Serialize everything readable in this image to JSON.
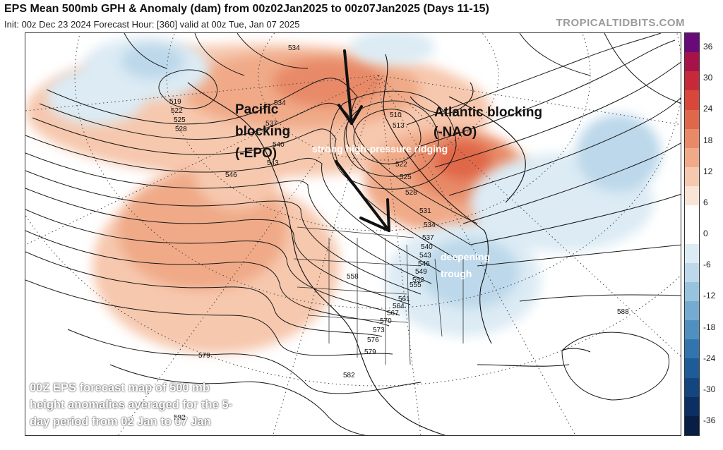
{
  "header": {
    "title": "EPS Mean 500mb GPH & Anomaly (dam) from 00z02Jan2025 to 00z07Jan2025 (Days 11-15)",
    "subtitle": "Init: 00z Dec 23 2024   Forecast Hour: [360]   valid at 00z Tue, Jan 07 2025",
    "brand": "TROPICALTIDBITS.COM"
  },
  "annotations": {
    "pacific_1": "Pacific",
    "pacific_2": "blocking",
    "pacific_3": "(-EPO)",
    "atlantic_1": "Atlantic blocking",
    "atlantic_2": "(-NAO)",
    "ridging": "strong high-pressure ridging",
    "trough_1": "deepening",
    "trough_2": "trough"
  },
  "caption": {
    "line1": "00Z EPS forecast map of 500 mb",
    "line2": "height anomalies averaged for the 5-",
    "line3": "day period from 02 Jan to 07 Jan"
  },
  "contour_labels": [
    "534",
    "534",
    "519",
    "522",
    "525",
    "528",
    "537",
    "540",
    "543",
    "546",
    "510",
    "513",
    "522",
    "525",
    "528",
    "531",
    "534",
    "537",
    "540",
    "543",
    "546",
    "549",
    "552",
    "555",
    "558",
    "561",
    "564",
    "567",
    "570",
    "573",
    "576",
    "579",
    "579",
    "582",
    "582",
    "588"
  ],
  "colorbar": {
    "unit": "dam",
    "labels": [
      "36",
      "30",
      "24",
      "18",
      "12",
      "6",
      "0",
      "-6",
      "-12",
      "-18",
      "-24",
      "-30",
      "-36"
    ],
    "colors": [
      "#6a0a7a",
      "#a8124a",
      "#c8293a",
      "#d8473a",
      "#e0684a",
      "#e88a68",
      "#f0aa88",
      "#f6c8ae",
      "#fae4d6",
      "#ffffff",
      "#ffffff",
      "#dcebf4",
      "#bcd8ea",
      "#98c3de",
      "#74abd0",
      "#5090c0",
      "#3275ae",
      "#1d5c98",
      "#13457e",
      "#0b2f62",
      "#081e45"
    ]
  }
}
